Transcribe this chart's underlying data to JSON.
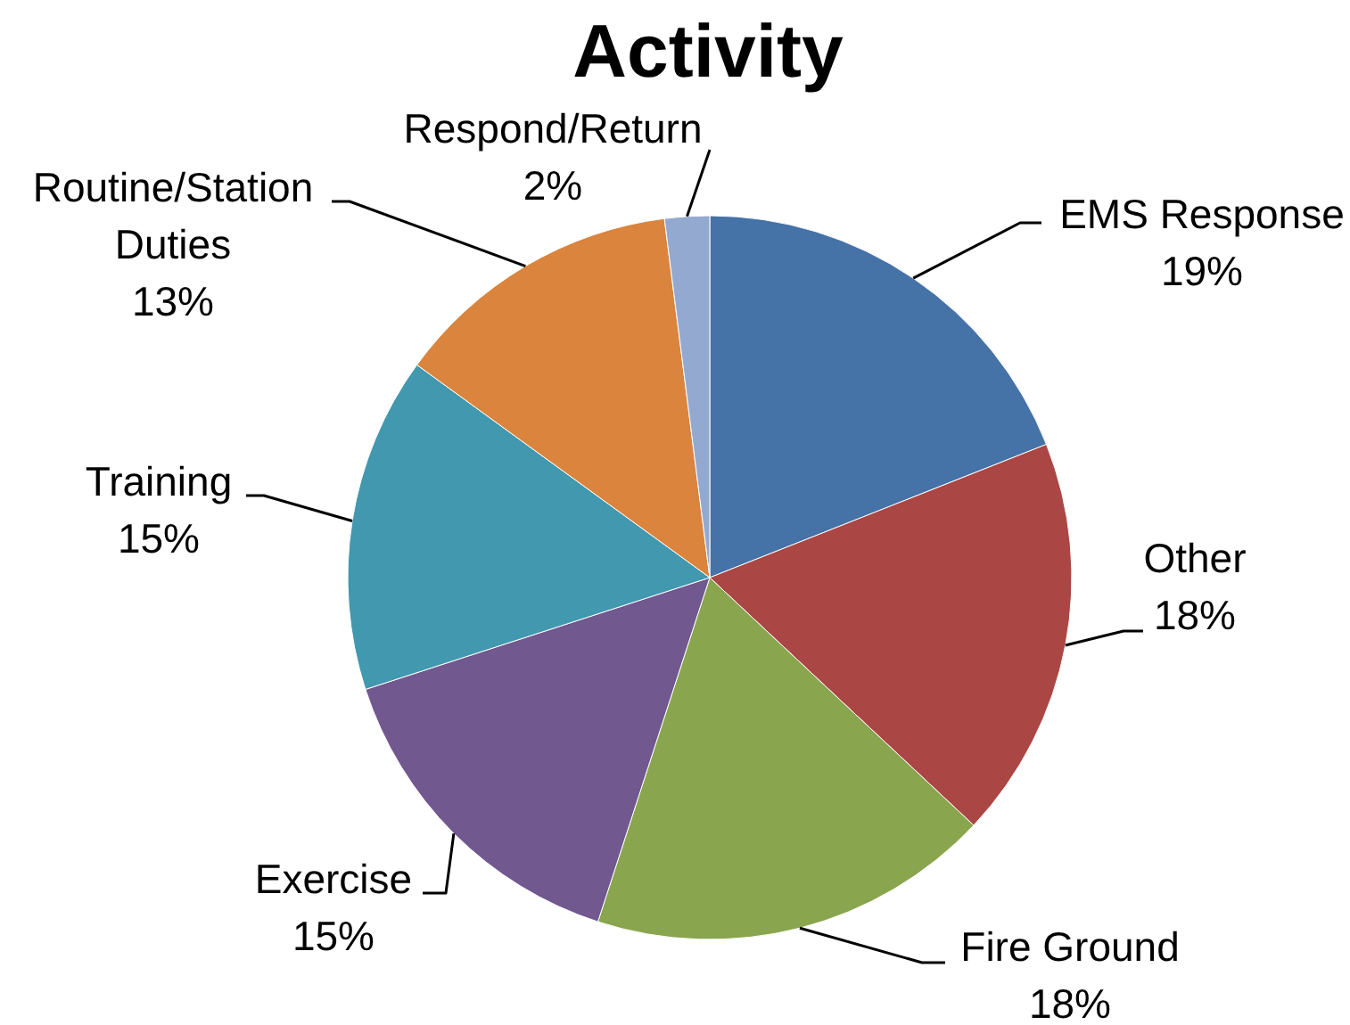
{
  "chart_data": {
    "type": "pie",
    "title": "Activity",
    "categories": [
      "EMS Response",
      "Other",
      "Fire Ground",
      "Exercise",
      "Training",
      "Routine/Station Duties",
      "Respond/Return"
    ],
    "values": [
      19,
      18,
      18,
      15,
      15,
      13,
      2
    ],
    "value_labels": [
      "19%",
      "18%",
      "18%",
      "15%",
      "15%",
      "13%",
      "2%"
    ],
    "colors": [
      "#4572a7",
      "#aa4643",
      "#89a54e",
      "#71588f",
      "#4198af",
      "#db843d",
      "#93a9cf"
    ]
  }
}
